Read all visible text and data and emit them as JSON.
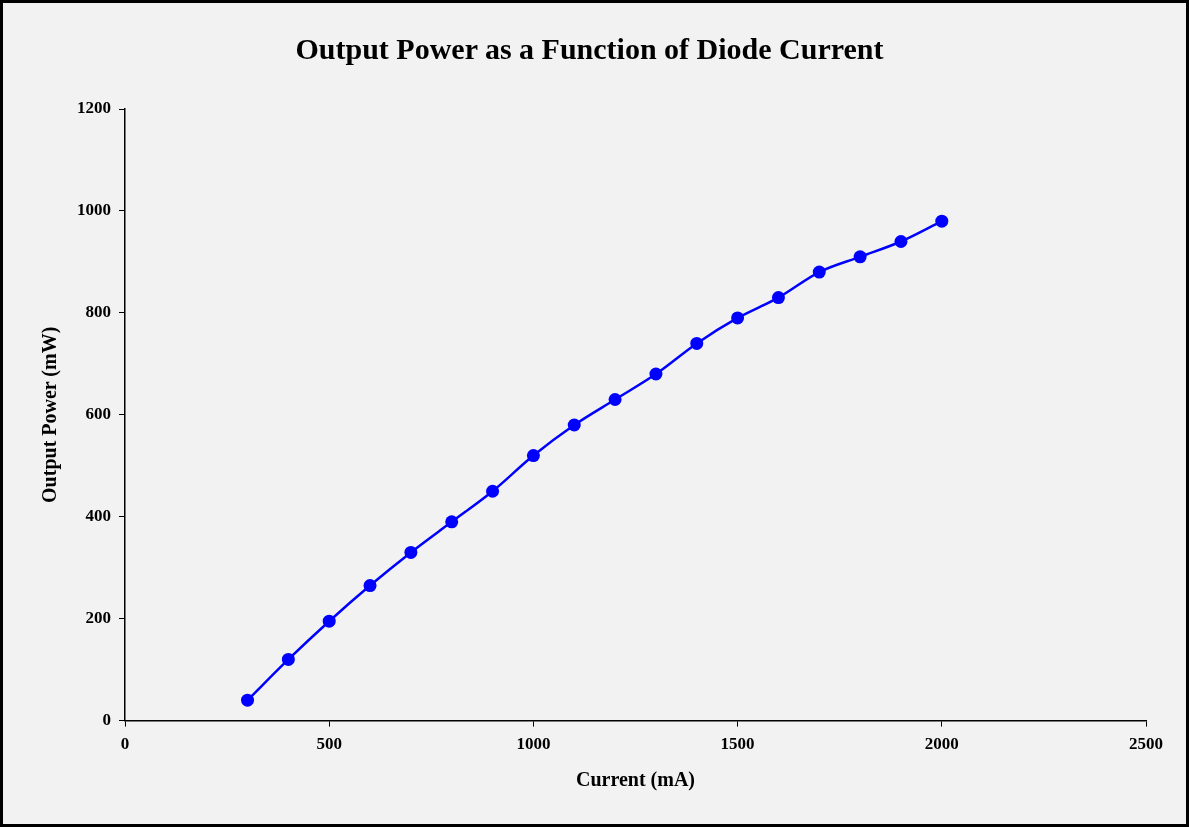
{
  "chart_data": {
    "type": "line",
    "title": "Output Power as a Function of Diode Current",
    "xlabel": "Current (mA)",
    "ylabel": "Output Power (mW)",
    "x": [
      300,
      400,
      500,
      600,
      700,
      800,
      900,
      1000,
      1100,
      1200,
      1300,
      1400,
      1500,
      1600,
      1700,
      1800,
      1900,
      2000
    ],
    "series": [
      {
        "color": "#0000ff",
        "values": [
          40,
          120,
          195,
          265,
          330,
          390,
          450,
          520,
          580,
          630,
          680,
          740,
          790,
          830,
          880,
          910,
          940,
          980
        ]
      }
    ],
    "xlim": [
      0,
      2500
    ],
    "xticks": [
      0,
      500,
      1000,
      1500,
      2000,
      2500
    ],
    "ylim": [
      0,
      1200
    ],
    "yticks": [
      0,
      200,
      400,
      600,
      800,
      1000,
      1200
    ],
    "grid": false,
    "legend": false,
    "marker": "circle",
    "line_style": "solid"
  }
}
